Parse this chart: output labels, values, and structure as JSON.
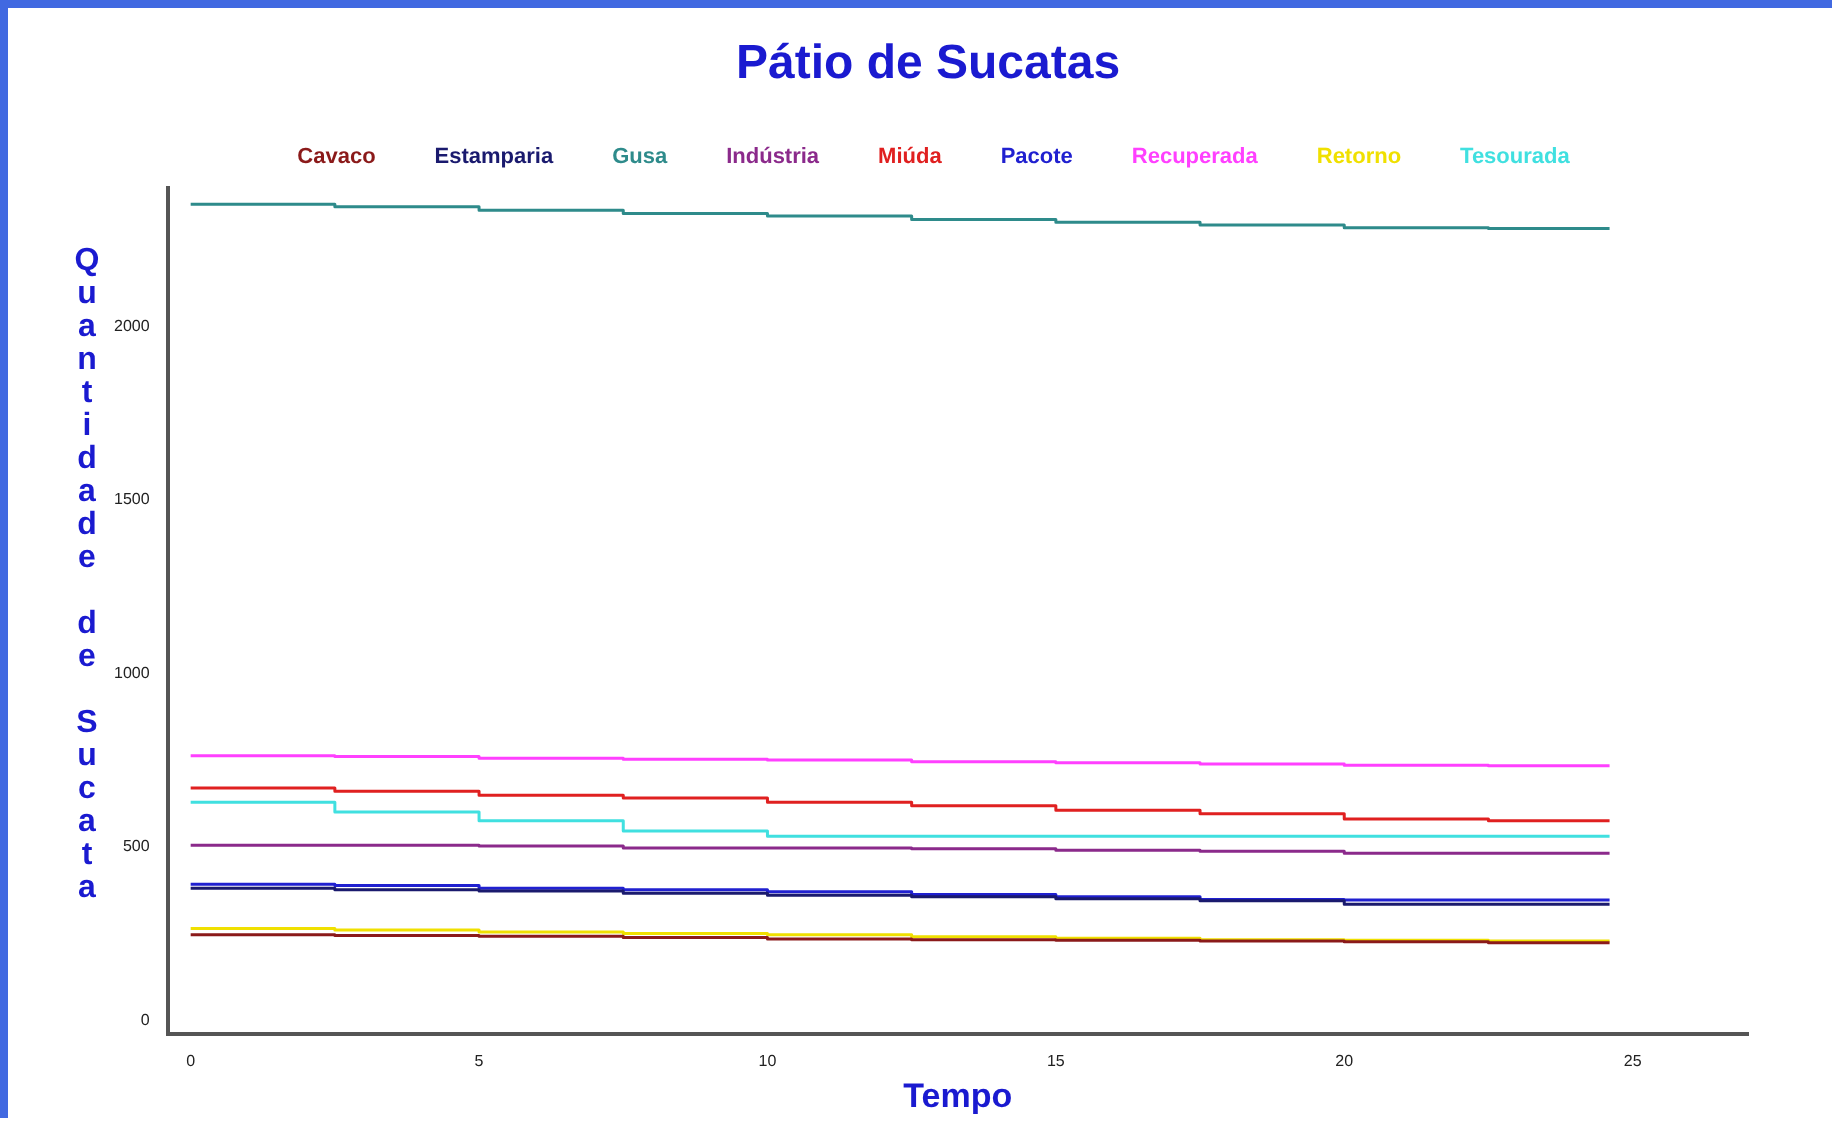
{
  "chart_data": {
    "type": "step",
    "title": "Pátio de Sucatas",
    "xlabel": "Tempo",
    "ylabel": "Quantidade de Sucata",
    "x": [
      0,
      2.5,
      5,
      7.5,
      10,
      12.5,
      15,
      17.5,
      20,
      22.5,
      24.6
    ],
    "xlim": [
      -0.4,
      27
    ],
    "xticks": [
      0,
      5,
      10,
      15,
      20,
      25
    ],
    "ylim": [
      -40,
      2400
    ],
    "yticks": [
      0,
      500,
      1000,
      1500,
      2000
    ],
    "grid": false,
    "legend": "top",
    "marker": "none",
    "series": [
      {
        "name": "Cavaco",
        "color": "#8b1a1a",
        "values": [
          246,
          244,
          242,
          238,
          234,
          232,
          230,
          228,
          226,
          223,
          223
        ]
      },
      {
        "name": "Estamparia",
        "color": "#1a1a6e",
        "values": [
          380,
          376,
          372,
          366,
          360,
          356,
          350,
          344,
          334,
          334,
          334
        ]
      },
      {
        "name": "Gusa",
        "color": "#2e8b8b",
        "values": [
          2352,
          2345,
          2335,
          2325,
          2318,
          2308,
          2300,
          2292,
          2284,
          2282,
          2282
        ]
      },
      {
        "name": "Indústria",
        "color": "#8b2a8b",
        "values": [
          504,
          504,
          502,
          496,
          496,
          494,
          490,
          487,
          481,
          481,
          481
        ]
      },
      {
        "name": "Miúda",
        "color": "#e02020",
        "values": [
          669,
          660,
          648,
          640,
          628,
          618,
          605,
          595,
          580,
          575,
          575
        ]
      },
      {
        "name": "Pacote",
        "color": "#2020d0",
        "values": [
          392,
          388,
          380,
          376,
          370,
          362,
          356,
          348,
          346,
          346,
          346
        ]
      },
      {
        "name": "Recuperada",
        "color": "#ff40ff",
        "values": [
          762,
          760,
          755,
          752,
          750,
          745,
          742,
          738,
          735,
          733,
          733
        ]
      },
      {
        "name": "Retorno",
        "color": "#f0e000",
        "values": [
          264,
          260,
          254,
          250,
          246,
          240,
          236,
          232,
          230,
          228,
          228
        ]
      },
      {
        "name": "Tesourada",
        "color": "#40e0e0",
        "values": [
          628,
          600,
          575,
          545,
          530,
          530,
          530,
          530,
          530,
          530,
          530
        ]
      }
    ]
  }
}
